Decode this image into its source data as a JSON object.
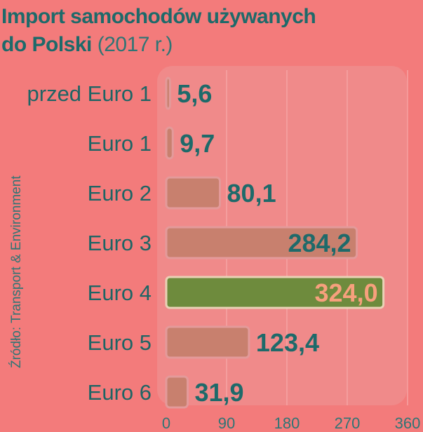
{
  "title_line1": "Import samochodów używanych",
  "title_line2": "do Polski",
  "title_year": "(2017 r.)",
  "source": "Źródło: Transport & Environment",
  "colors": {
    "background": "#f37b7b",
    "plot_area": "#f08a8a",
    "bar": "#c8806e",
    "bar_highlight": "#6e8b3d",
    "text": "#1e6a6a",
    "highlight_label": "#f7a07d"
  },
  "chart_data": {
    "type": "bar",
    "orientation": "horizontal",
    "categories": [
      "przed Euro 1",
      "Euro 1",
      "Euro 2",
      "Euro 3",
      "Euro 4",
      "Euro 5",
      "Euro 6"
    ],
    "values": [
      5.6,
      9.7,
      80.1,
      284.2,
      324.0,
      123.4,
      31.9
    ],
    "value_labels": [
      "5,6",
      "9,7",
      "80,1",
      "284,2",
      "324,0",
      "123,4",
      "31,9"
    ],
    "highlight": "Euro 4",
    "xlim": [
      0,
      360
    ],
    "xticks": [
      "0",
      "90",
      "180",
      "270",
      "360"
    ],
    "grid": true
  }
}
